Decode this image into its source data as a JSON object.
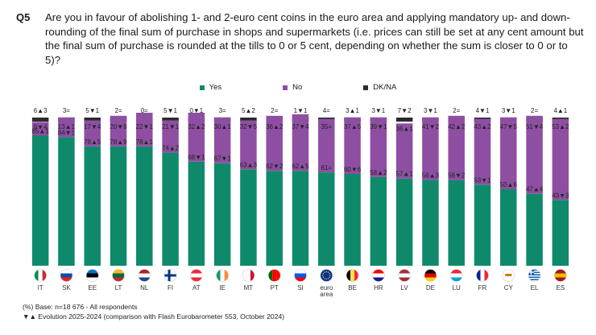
{
  "question": {
    "number": "Q5",
    "text": "Are you in favour of abolishing 1- and 2-euro cent coins in the euro area and applying mandatory up- and down-rounding of the final sum of purchase in shops and supermarkets (i.e. prices can still be set at any cent amount but the final sum of purchase is rounded at the tills to 0 or 5 cent, depending on whether the sum is closer to 0 or to 5)?"
  },
  "legend": {
    "yes": "Yes",
    "no": "No",
    "dk": "DK/NA"
  },
  "colors": {
    "yes": "#0e8a6b",
    "no": "#8e4fa3",
    "dk": "#2b2b2b"
  },
  "footer": {
    "base": "(%) Base: n=18 676 - All respondents",
    "evolution": "▼▲ Evolution 2025-2024 (comparison with Flash Eurobarometer 553, October 2024)"
  },
  "chart_data": {
    "type": "bar",
    "stacked": true,
    "categories": [
      "IT",
      "SK",
      "EE",
      "LT",
      "NL",
      "FI",
      "AT",
      "IE",
      "MT",
      "PT",
      "SI",
      "euro area",
      "BE",
      "HR",
      "LV",
      "DE",
      "LU",
      "FR",
      "CY",
      "EL",
      "ES"
    ],
    "ylim": [
      0,
      100
    ],
    "series": [
      {
        "name": "Yes",
        "values": [
          85,
          84,
          78,
          78,
          78,
          74,
          68,
          67,
          63,
          62,
          62,
          61,
          60,
          58,
          57,
          56,
          56,
          53,
          50,
          47,
          43
        ],
        "labels": [
          "85▲1",
          "84▼1",
          "78▲5",
          "78▲9",
          "78▲1",
          "74▲2",
          "68▼1",
          "67▼1",
          "63▲3",
          "62▼2",
          "62▲5",
          "61=",
          "60▼6",
          "58▲2",
          "57▲1",
          "56▲3",
          "56▼2",
          "53▼1",
          "50▲6",
          "47▲4",
          "43▼3"
        ]
      },
      {
        "name": "No",
        "values": [
          9,
          13,
          17,
          20,
          22,
          21,
          32,
          30,
          32,
          36,
          37,
          35,
          37,
          39,
          36,
          41,
          42,
          43,
          47,
          51,
          53
        ],
        "labels": [
          "9▼4",
          "13▲1",
          "17▼4",
          "20▼9",
          "22▼1",
          "21▼1",
          "32▲2",
          "30▲1",
          "32▼5",
          "36▲2",
          "37▼4",
          "35=",
          "37▲5",
          "39▼1",
          "36▲1",
          "41▼2",
          "42▲2",
          "43▲2",
          "47▼5",
          "51▼4",
          "53▲2"
        ]
      },
      {
        "name": "DK/NA",
        "values": [
          6,
          3,
          5,
          2,
          0,
          5,
          0,
          3,
          5,
          2,
          1,
          4,
          3,
          3,
          7,
          3,
          2,
          4,
          3,
          2,
          4
        ],
        "labels": [
          "6▲3",
          "3=",
          "5▼1",
          "2=",
          "0=",
          "5▼1",
          "0▼1",
          "3=",
          "5▲2",
          "2=",
          "1▼1",
          "4=",
          "3▲1",
          "3▼1",
          "7▼2",
          "3▼1",
          "2=",
          "4▼1",
          "3▼1",
          "2=",
          "4▲1"
        ]
      }
    ],
    "flags": [
      "IT",
      "SK",
      "EE",
      "LT",
      "NL",
      "FI",
      "AT",
      "IE",
      "MT",
      "PT",
      "SI",
      "EU",
      "BE",
      "HR",
      "LV",
      "DE",
      "LU",
      "FR",
      "CY",
      "EL",
      "ES"
    ]
  }
}
